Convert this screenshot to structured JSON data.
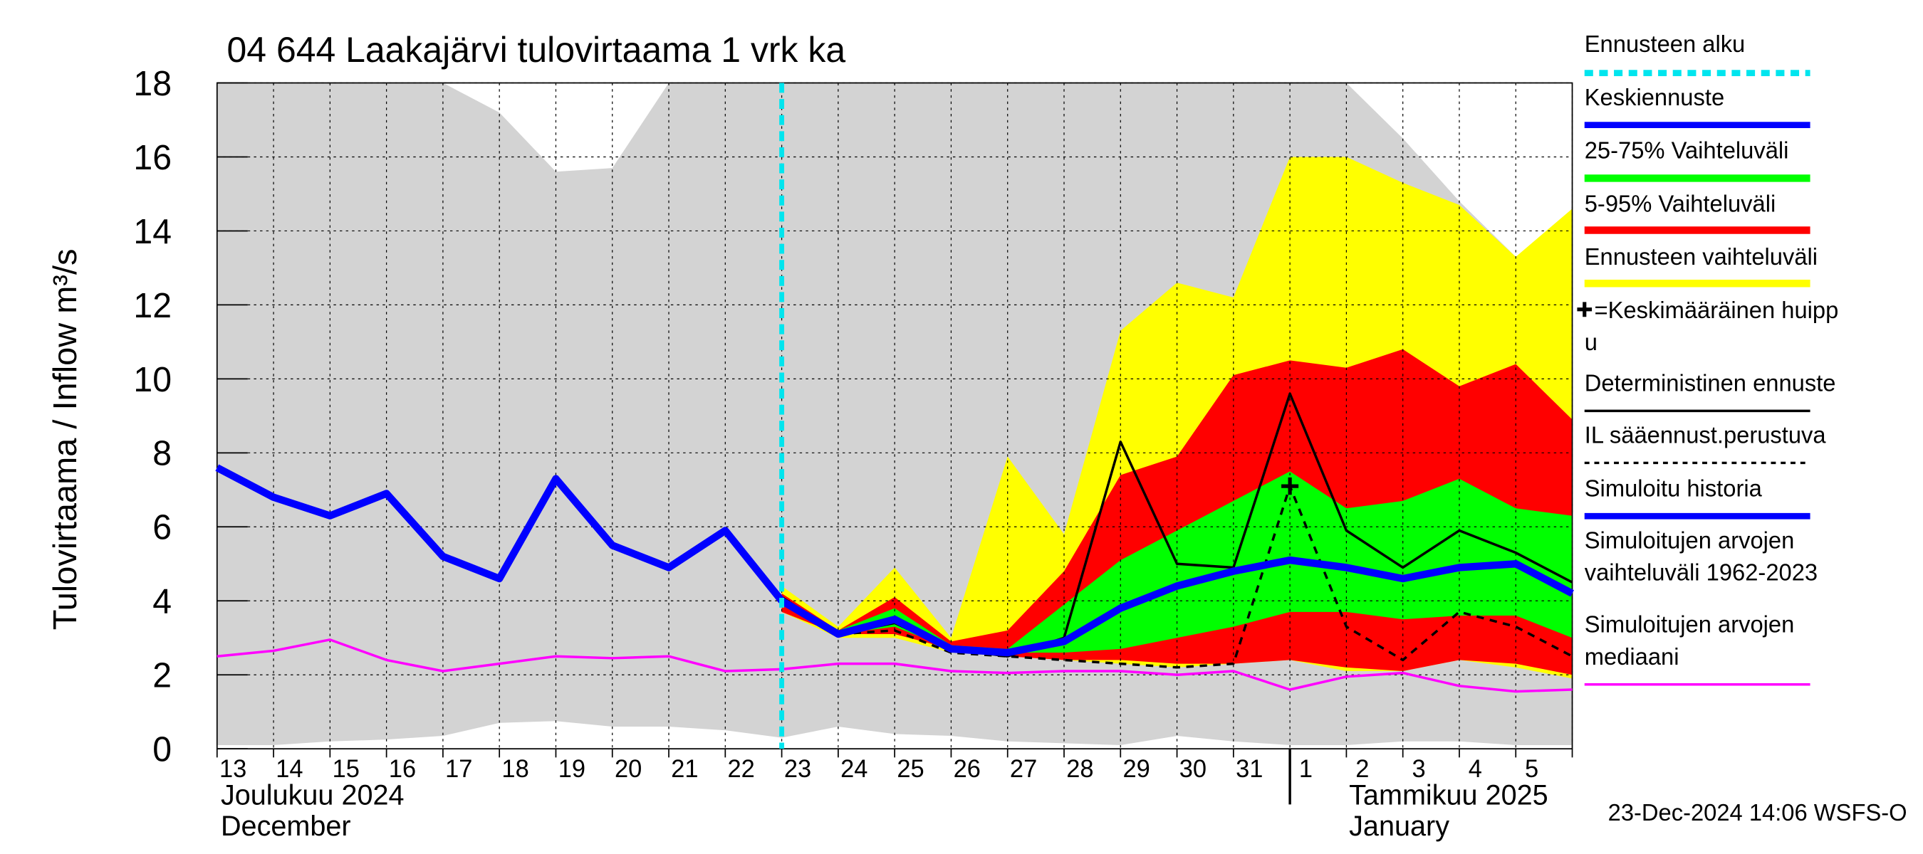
{
  "chart_data": {
    "type": "forecast",
    "title": "04 644 Laakajärvi tulovirtaama 1 vrk ka",
    "y_label": "Tulovirtaama / Inflow   m³/s",
    "footer": "23-Dec-2024 14:06 WSFS-O",
    "month_labels": [
      [
        "Joulukuu  2024",
        "December"
      ],
      [
        "Tammikuu  2025",
        "January"
      ]
    ],
    "categories": [
      "13",
      "14",
      "15",
      "16",
      "17",
      "18",
      "19",
      "20",
      "21",
      "22",
      "23",
      "24",
      "25",
      "26",
      "27",
      "28",
      "29",
      "30",
      "31",
      "1",
      "2",
      "3",
      "4",
      "5",
      null
    ],
    "ylim": [
      0,
      18
    ],
    "yticks": [
      0,
      2,
      4,
      6,
      8,
      10,
      12,
      14,
      16,
      18
    ],
    "grid": true,
    "series": [
      {
        "name": [
          "Ennusteen alku"
        ],
        "kind": "vline",
        "color": "#00e5ee",
        "x": 10
      },
      {
        "name": [
          "Keskiennuste"
        ],
        "kind": "line",
        "color": "#0000ff",
        "width": 6,
        "values": [
          null,
          null,
          null,
          null,
          null,
          null,
          null,
          null,
          null,
          null,
          4.0,
          3.1,
          3.5,
          2.7,
          2.6,
          2.9,
          3.8,
          4.4,
          4.8,
          5.1,
          4.9,
          4.6,
          4.9,
          5.0,
          4.2
        ]
      },
      {
        "name": [
          "25-75% Vaihteluväli"
        ],
        "kind": "band",
        "color": "#00ff00",
        "lower": [
          null,
          null,
          null,
          null,
          null,
          null,
          null,
          null,
          null,
          null,
          3.9,
          3.1,
          3.3,
          2.7,
          2.6,
          2.6,
          2.7,
          3.0,
          3.3,
          3.7,
          3.7,
          3.5,
          3.6,
          3.6,
          3.0
        ],
        "upper": [
          null,
          null,
          null,
          null,
          null,
          null,
          null,
          null,
          null,
          null,
          4.1,
          3.2,
          3.8,
          2.8,
          2.7,
          3.9,
          5.1,
          5.9,
          6.7,
          7.5,
          6.5,
          6.7,
          7.3,
          6.5,
          6.3
        ]
      },
      {
        "name": [
          "5-95% Vaihteluväli"
        ],
        "kind": "band",
        "color": "#ff0000",
        "lower": [
          null,
          null,
          null,
          null,
          null,
          null,
          null,
          null,
          null,
          null,
          3.7,
          3.1,
          3.1,
          2.7,
          2.5,
          2.4,
          2.4,
          2.3,
          2.3,
          2.4,
          2.2,
          2.1,
          2.4,
          2.3,
          2.0
        ],
        "upper": [
          null,
          null,
          null,
          null,
          null,
          null,
          null,
          null,
          null,
          null,
          4.2,
          3.2,
          4.1,
          2.9,
          3.2,
          4.8,
          7.4,
          7.9,
          10.1,
          10.5,
          10.3,
          10.8,
          9.8,
          10.4,
          8.9
        ]
      },
      {
        "name": [
          "Ennusteen vaihteluväli"
        ],
        "kind": "band",
        "color": "#ffff00",
        "lower": [
          null,
          null,
          null,
          null,
          null,
          null,
          null,
          null,
          null,
          null,
          3.7,
          3.0,
          3.0,
          2.6,
          2.5,
          2.4,
          2.3,
          2.2,
          2.3,
          2.4,
          2.1,
          2.1,
          2.4,
          2.2,
          1.9
        ],
        "upper": [
          null,
          null,
          null,
          null,
          null,
          null,
          null,
          null,
          null,
          null,
          4.4,
          3.3,
          4.9,
          3.0,
          7.9,
          5.8,
          11.3,
          12.6,
          12.2,
          16.0,
          16.0,
          15.3,
          14.7,
          13.3,
          14.6
        ]
      },
      {
        "name": [
          "=Keskimääräinen huipp",
          "u"
        ],
        "kind": "marker",
        "color": "#000000",
        "x": 19,
        "value": 7.1
      },
      {
        "name": [
          "Deterministinen ennuste"
        ],
        "kind": "line",
        "color": "#000000",
        "width": 2,
        "values": [
          null,
          null,
          null,
          null,
          null,
          null,
          null,
          null,
          null,
          5.9,
          4.1,
          3.1,
          3.4,
          2.7,
          2.5,
          3.0,
          8.3,
          5.0,
          4.9,
          9.6,
          5.9,
          4.9,
          5.9,
          5.3,
          4.5
        ]
      },
      {
        "name": [
          "IL sääennust.perustuva"
        ],
        "kind": "dashed",
        "color": "#000000",
        "width": 2,
        "values": [
          null,
          null,
          null,
          null,
          null,
          null,
          null,
          null,
          null,
          null,
          4.0,
          3.1,
          3.2,
          2.6,
          2.5,
          2.4,
          2.3,
          2.2,
          2.3,
          7.1,
          3.3,
          2.4,
          3.7,
          3.3,
          2.5
        ]
      },
      {
        "name": [
          "Simuloitu historia"
        ],
        "kind": "line",
        "color": "#0000ff",
        "width": 6,
        "values": [
          7.6,
          6.8,
          6.3,
          6.9,
          5.2,
          4.6,
          7.3,
          5.5,
          4.9,
          5.9,
          4.0,
          null,
          null,
          null,
          null,
          null,
          null,
          null,
          null,
          null,
          null,
          null,
          null,
          null,
          null
        ]
      },
      {
        "name": [
          "Simuloitujen arvojen",
          "vaihteluväli 1962-2023"
        ],
        "kind": "band",
        "color": "#d3d3d3",
        "lower": [
          0.1,
          0.1,
          0.2,
          0.25,
          0.35,
          0.7,
          0.75,
          0.6,
          0.6,
          0.5,
          0.3,
          0.6,
          0.4,
          0.35,
          0.2,
          0.15,
          0.1,
          0.35,
          0.2,
          0.1,
          0.1,
          0.2,
          0.2,
          0.1,
          0.1
        ],
        "upper": [
          18,
          18,
          18,
          18,
          18,
          17.2,
          15.6,
          15.7,
          18,
          18,
          18,
          18,
          18,
          18,
          18,
          18,
          18,
          18,
          18,
          18,
          18,
          16.5,
          14.8,
          13.3,
          11.9
        ]
      },
      {
        "name": [
          "Simuloitujen arvojen",
          "mediaani"
        ],
        "kind": "line",
        "color": "#ff00ff",
        "width": 2,
        "values": [
          2.5,
          2.65,
          2.95,
          2.4,
          2.1,
          2.3,
          2.5,
          2.45,
          2.5,
          2.1,
          2.15,
          2.3,
          2.3,
          2.1,
          2.05,
          2.1,
          2.1,
          2.0,
          2.1,
          1.6,
          1.95,
          2.05,
          1.7,
          1.55,
          1.6
        ]
      }
    ]
  }
}
